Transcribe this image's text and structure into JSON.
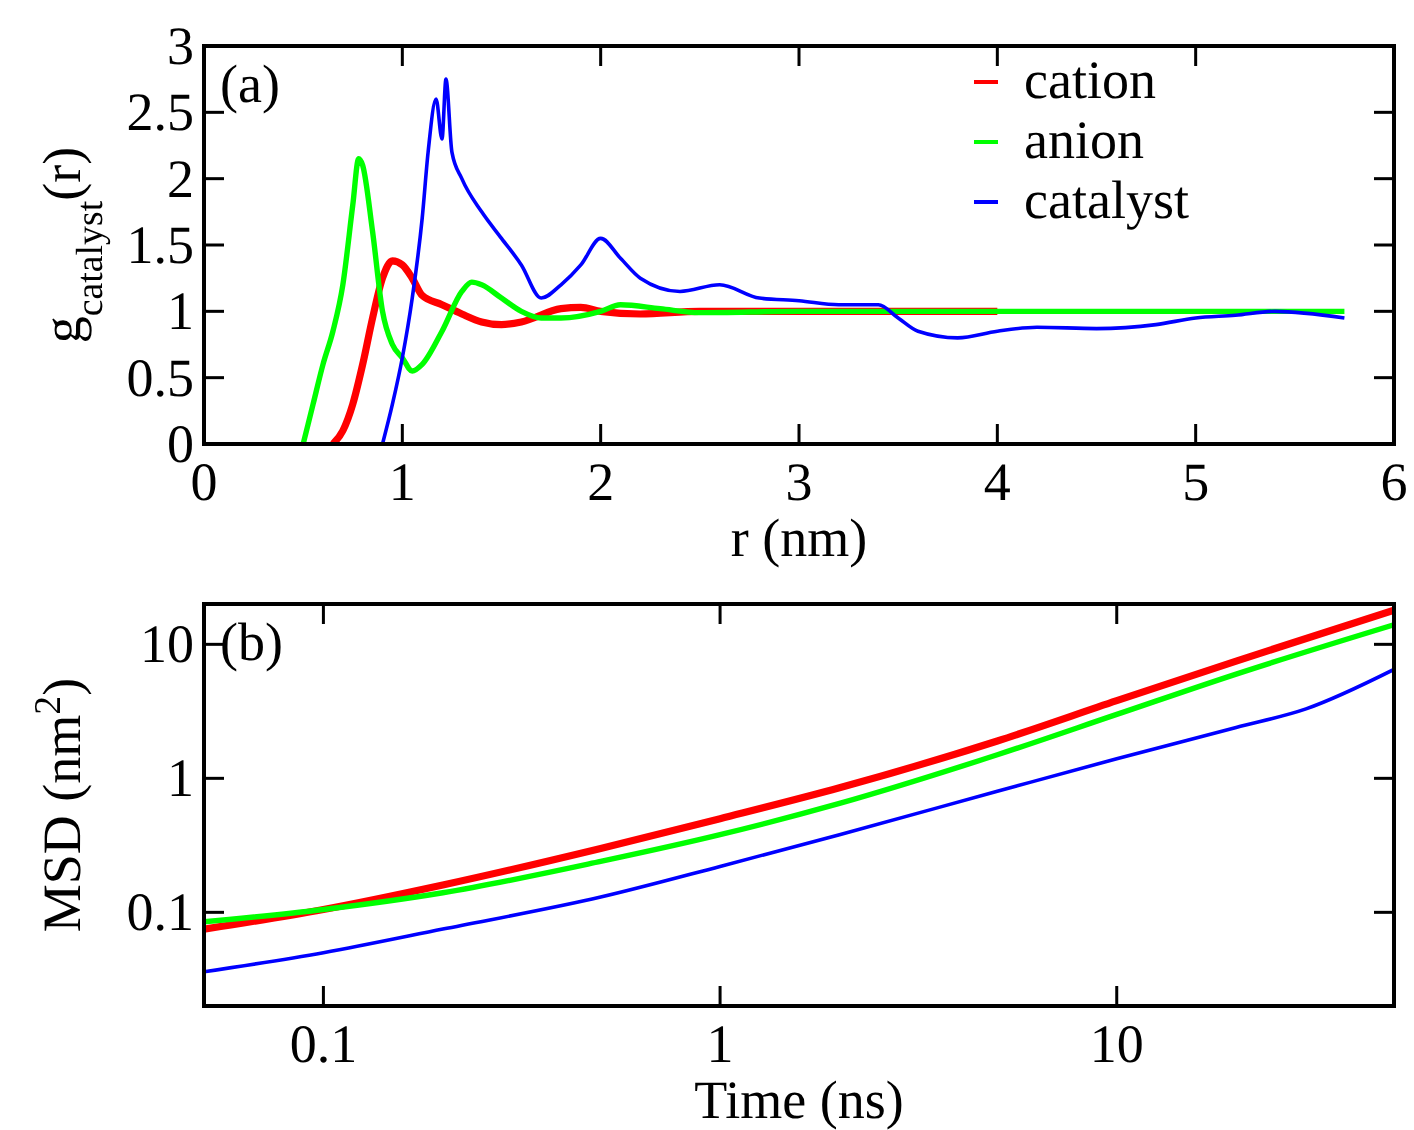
{
  "chart_data": [
    {
      "type": "line",
      "xlabel": "r (nm)",
      "ylabel": "g$_{catalyst}$(r)",
      "annotations": [
        "(a)"
      ],
      "xlim": [
        0,
        6
      ],
      "ylim": [
        0,
        3
      ],
      "xticks": [
        0,
        1,
        2,
        3,
        4,
        5,
        6
      ],
      "yticks": [
        0,
        0.5,
        1,
        1.5,
        2,
        2.5,
        3
      ],
      "legend": "top right",
      "series": [
        {
          "name": "cation",
          "color": "#ff0000",
          "x": [
            0.65,
            0.7,
            0.75,
            0.8,
            0.85,
            0.9,
            0.95,
            1.0,
            1.05,
            1.1,
            1.2,
            1.3,
            1.4,
            1.5,
            1.6,
            1.8,
            1.9,
            2.0,
            2.2,
            2.5,
            3,
            4
          ],
          "values": [
            0,
            0.1,
            0.3,
            0.6,
            0.95,
            1.25,
            1.38,
            1.35,
            1.25,
            1.12,
            1.05,
            0.98,
            0.92,
            0.9,
            0.92,
            1.02,
            1.03,
            1.0,
            0.98,
            1.0,
            1.0,
            1.0
          ]
        },
        {
          "name": "anion",
          "color": "#00ff00",
          "x": [
            0.5,
            0.55,
            0.6,
            0.65,
            0.7,
            0.75,
            0.78,
            0.8,
            0.85,
            0.9,
            0.95,
            1.0,
            1.05,
            1.1,
            1.2,
            1.3,
            1.35,
            1.4,
            1.5,
            1.6,
            1.7,
            1.8,
            2.0,
            2.1,
            2.3,
            2.5,
            3,
            4,
            5,
            5.75
          ],
          "values": [
            0,
            0.3,
            0.6,
            0.85,
            1.2,
            1.8,
            2.15,
            2.1,
            1.6,
            1.0,
            0.75,
            0.65,
            0.55,
            0.6,
            0.85,
            1.15,
            1.22,
            1.2,
            1.1,
            1.0,
            0.95,
            0.95,
            1.0,
            1.05,
            1.02,
            0.99,
            1.0,
            1.0,
            1.0,
            1.0
          ]
        },
        {
          "name": "catalyst",
          "color": "#0000ff",
          "x": [
            0.9,
            0.95,
            1.0,
            1.05,
            1.1,
            1.13,
            1.17,
            1.2,
            1.22,
            1.25,
            1.3,
            1.4,
            1.5,
            1.6,
            1.7,
            1.8,
            1.9,
            2.0,
            2.1,
            2.2,
            2.4,
            2.6,
            2.8,
            3.0,
            3.2,
            3.4,
            3.5,
            3.6,
            3.8,
            4.0,
            4.2,
            4.5,
            4.8,
            5.0,
            5.2,
            5.4,
            5.75
          ],
          "values": [
            0,
            0.3,
            0.65,
            1.1,
            1.7,
            2.2,
            2.6,
            2.3,
            2.75,
            2.2,
            2.0,
            1.75,
            1.55,
            1.35,
            1.1,
            1.2,
            1.35,
            1.55,
            1.4,
            1.25,
            1.15,
            1.2,
            1.1,
            1.08,
            1.05,
            1.05,
            0.95,
            0.85,
            0.8,
            0.85,
            0.88,
            0.87,
            0.9,
            0.95,
            0.97,
            1.0,
            0.95
          ]
        }
      ]
    },
    {
      "type": "line",
      "xlabel": "Time (ns)",
      "ylabel": "MSD (nm$^{2}$)",
      "annotations": [
        "(b)"
      ],
      "log": "xy",
      "xlim": [
        0.05,
        50
      ],
      "ylim": [
        0.02,
        20
      ],
      "xticks": [
        0.1,
        1,
        10
      ],
      "yticks": [
        0.1,
        1,
        10
      ],
      "series": [
        {
          "color": "#ff0000",
          "x": [
            0.05,
            0.1,
            0.2,
            0.5,
            1,
            2,
            5,
            10,
            20,
            50
          ],
          "values": [
            0.075,
            0.105,
            0.16,
            0.3,
            0.5,
            0.85,
            1.9,
            3.8,
            7.5,
            18
          ]
        },
        {
          "color": "#00ff00",
          "x": [
            0.05,
            0.1,
            0.2,
            0.5,
            1,
            2,
            5,
            10,
            20,
            50
          ],
          "values": [
            0.085,
            0.105,
            0.14,
            0.24,
            0.38,
            0.65,
            1.5,
            3.0,
            6,
            14
          ]
        },
        {
          "color": "#0000ff",
          "x": [
            0.05,
            0.1,
            0.2,
            0.5,
            1,
            2,
            5,
            10,
            20,
            30,
            50
          ],
          "values": [
            0.036,
            0.05,
            0.075,
            0.13,
            0.22,
            0.38,
            0.8,
            1.4,
            2.4,
            3.3,
            6.5
          ]
        }
      ]
    }
  ]
}
